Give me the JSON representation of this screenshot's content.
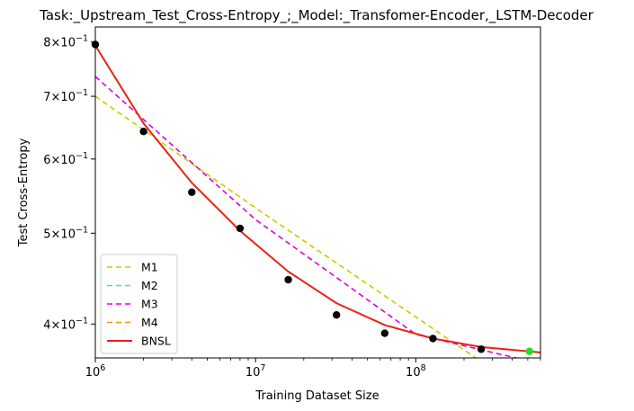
{
  "chart_data": {
    "type": "line",
    "title": "Task:_Upstream_Test_Cross-Entropy_;_Model:_Transfomer-Encoder,_LSTM-Decoder",
    "xlabel": "Training Dataset Size",
    "ylabel": "Test Cross-Entropy",
    "x_scale": "log",
    "y_scale": "log",
    "xlim": [
      1000000,
      600000000
    ],
    "ylim": [
      0.368,
      0.83
    ],
    "x_ticks": [
      {
        "value": 1000000,
        "base": "10",
        "exp": "6"
      },
      {
        "value": 10000000,
        "base": "10",
        "exp": "7"
      },
      {
        "value": 100000000,
        "base": "10",
        "exp": "8"
      }
    ],
    "y_ticks": [
      {
        "value": 0.8,
        "mant": "8",
        "base": "10",
        "exp": "−1"
      },
      {
        "value": 0.7,
        "mant": "7",
        "base": "10",
        "exp": "−1"
      },
      {
        "value": 0.6,
        "mant": "6",
        "base": "10",
        "exp": "−1"
      },
      {
        "value": 0.5,
        "mant": "5",
        "base": "10",
        "exp": "−1"
      },
      {
        "value": 0.4,
        "mant": "4",
        "base": "10",
        "exp": "−1"
      }
    ],
    "points": [
      {
        "x": 1000000,
        "y": 0.795,
        "color": "#000000"
      },
      {
        "x": 2000000,
        "y": 0.642,
        "color": "#000000"
      },
      {
        "x": 4000000,
        "y": 0.553,
        "color": "#000000"
      },
      {
        "x": 8000000,
        "y": 0.506,
        "color": "#000000"
      },
      {
        "x": 16000000,
        "y": 0.446,
        "color": "#000000"
      },
      {
        "x": 32000000,
        "y": 0.409,
        "color": "#000000"
      },
      {
        "x": 64000000,
        "y": 0.391,
        "color": "#000000"
      },
      {
        "x": 128000000,
        "y": 0.386,
        "color": "#000000"
      },
      {
        "x": 256000000,
        "y": 0.376,
        "color": "#000000"
      },
      {
        "x": 512000000,
        "y": 0.374,
        "color": "#22dd22"
      }
    ],
    "series": [
      {
        "name": "M1",
        "color": "#cccc00",
        "dash": "6,4",
        "x": [
          1000000,
          10000000,
          100000000,
          300000000
        ],
        "y": [
          0.7,
          0.532,
          0.407,
          0.358
        ]
      },
      {
        "name": "M2",
        "color": "#22e5f0",
        "dash": "6,4",
        "x": [
          1000000,
          2000000,
          4000000,
          8000000,
          16000000,
          32000000,
          64000000,
          128000000,
          256000000,
          600000000
        ],
        "y": [
          0.793,
          0.655,
          0.566,
          0.503,
          0.455,
          0.421,
          0.399,
          0.386,
          0.378,
          0.373
        ]
      },
      {
        "name": "M3",
        "color": "#dd00dd",
        "dash": "6,4",
        "x": [
          1000000,
          10000000,
          100000000,
          300000000,
          600000000
        ],
        "y": [
          0.735,
          0.517,
          0.39,
          0.373,
          0.363
        ]
      },
      {
        "name": "M4",
        "color": "#ee9900",
        "dash": "6,4",
        "x": [
          1000000,
          2000000,
          4000000,
          8000000,
          16000000,
          32000000,
          64000000,
          128000000,
          256000000,
          600000000
        ],
        "y": [
          0.793,
          0.655,
          0.566,
          0.503,
          0.455,
          0.421,
          0.399,
          0.386,
          0.378,
          0.373
        ]
      },
      {
        "name": "BNSL",
        "color": "#ee2211",
        "dash": "",
        "x": [
          1000000,
          2000000,
          4000000,
          8000000,
          16000000,
          32000000,
          64000000,
          128000000,
          256000000,
          600000000
        ],
        "y": [
          0.793,
          0.655,
          0.566,
          0.503,
          0.455,
          0.421,
          0.399,
          0.386,
          0.378,
          0.373
        ]
      }
    ],
    "legend_position": "lower-left",
    "grid": false
  }
}
